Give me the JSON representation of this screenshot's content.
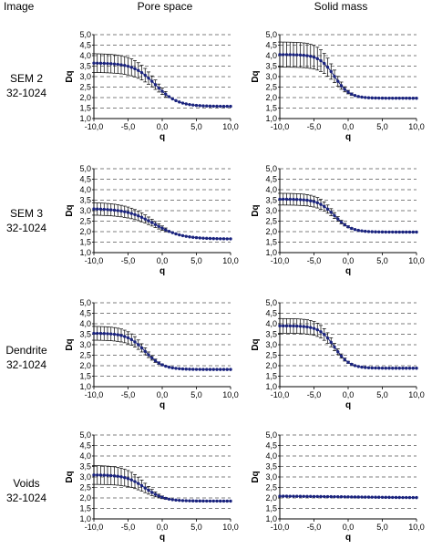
{
  "headers": {
    "image": "Image",
    "pore": "Pore space",
    "solid": "Solid mass"
  },
  "rows": [
    {
      "line1": "SEM 2",
      "line2": "32-1024"
    },
    {
      "line1": "SEM 3",
      "line2": "32-1024"
    },
    {
      "line1": "Dendrite",
      "line2": "32-1024"
    },
    {
      "line1": "Voids",
      "line2": "32-1024"
    }
  ],
  "colors": {
    "series": "#1a237e",
    "grid": "#555555",
    "error_bar": "#000000"
  },
  "chart_data": [
    {
      "id": "sem2-pore",
      "type": "scatter",
      "xlabel": "q",
      "ylabel": "Dq",
      "xlim": [
        -10,
        10
      ],
      "ylim": [
        1,
        5
      ],
      "grid": "horizontal-dashed",
      "xticks": [
        "-10,0",
        "-5,0",
        "0,0",
        "5,0",
        "10,0"
      ],
      "yticks": [
        "1,0",
        "1,5",
        "2,0",
        "2,5",
        "3,0",
        "3,5",
        "4,0",
        "4,5",
        "5,0"
      ],
      "curve": {
        "dmax": 3.65,
        "dmin": 1.58,
        "center": -1.0,
        "width": 1.6,
        "err_max": 0.45
      }
    },
    {
      "id": "sem2-solid",
      "type": "scatter",
      "xlabel": "q",
      "ylabel": "Dq",
      "xlim": [
        -10,
        10
      ],
      "ylim": [
        1,
        5
      ],
      "grid": "horizontal-dashed",
      "xticks": [
        "-10,0",
        "-5,0",
        "0,0",
        "5,0",
        "10,0"
      ],
      "yticks": [
        "1,0",
        "1,5",
        "2,0",
        "2,5",
        "3,0",
        "3,5",
        "4,0",
        "4,5",
        "5,0"
      ],
      "curve": {
        "dmax": 4.05,
        "dmin": 1.97,
        "center": -2.0,
        "width": 1.1,
        "err_max": 0.6
      }
    },
    {
      "id": "sem3-pore",
      "type": "scatter",
      "xlabel": "q",
      "ylabel": "Dq",
      "xlim": [
        -10,
        10
      ],
      "ylim": [
        1,
        5
      ],
      "grid": "horizontal-dashed",
      "xticks": [
        "-10,0",
        "-5,0",
        "0,0",
        "5,0",
        "10,0"
      ],
      "yticks": [
        "1,0",
        "1,5",
        "2,0",
        "2,5",
        "3,0",
        "3,5",
        "4,0",
        "4,5",
        "5,0"
      ],
      "curve": {
        "dmax": 3.1,
        "dmin": 1.65,
        "center": -1.2,
        "width": 2.0,
        "err_max": 0.3
      }
    },
    {
      "id": "sem3-solid",
      "type": "scatter",
      "xlabel": "q",
      "ylabel": "Dq",
      "xlim": [
        -10,
        10
      ],
      "ylim": [
        1,
        5
      ],
      "grid": "horizontal-dashed",
      "xticks": [
        "-10,0",
        "-5,0",
        "0,0",
        "5,0",
        "10,0"
      ],
      "yticks": [
        "1,0",
        "1,5",
        "2,0",
        "2,5",
        "3,0",
        "3,5",
        "4,0",
        "4,5",
        "5,0"
      ],
      "curve": {
        "dmax": 3.55,
        "dmin": 1.98,
        "center": -2.0,
        "width": 1.2,
        "err_max": 0.28
      }
    },
    {
      "id": "dendrite-pore",
      "type": "scatter",
      "xlabel": "q",
      "ylabel": "Dq",
      "xlim": [
        -10,
        10
      ],
      "ylim": [
        1,
        5
      ],
      "grid": "horizontal-dashed",
      "xticks": [
        "-10,0",
        "-5,0",
        "0,0",
        "5,0",
        "10,0"
      ],
      "yticks": [
        "1,0",
        "1,5",
        "2,0",
        "2,5",
        "3,0",
        "3,5",
        "4,0",
        "4,5",
        "5,0"
      ],
      "curve": {
        "dmax": 3.55,
        "dmin": 1.82,
        "center": -2.5,
        "width": 1.3,
        "err_max": 0.33
      }
    },
    {
      "id": "dendrite-solid",
      "type": "scatter",
      "xlabel": "q",
      "ylabel": "Dq",
      "xlim": [
        -10,
        10
      ],
      "ylim": [
        1,
        5
      ],
      "grid": "horizontal-dashed",
      "xticks": [
        "-10,0",
        "-5,0",
        "0,0",
        "5,0",
        "10,0"
      ],
      "yticks": [
        "1,0",
        "1,5",
        "2,0",
        "2,5",
        "3,0",
        "3,5",
        "4,0",
        "4,5",
        "5,0"
      ],
      "curve": {
        "dmax": 3.9,
        "dmin": 1.88,
        "center": -2.0,
        "width": 1.1,
        "err_max": 0.35
      }
    },
    {
      "id": "voids-pore",
      "type": "scatter",
      "xlabel": "q",
      "ylabel": "Dq",
      "xlim": [
        -10,
        10
      ],
      "ylim": [
        1,
        5
      ],
      "grid": "horizontal-dashed",
      "xticks": [
        "-10,0",
        "-5,0",
        "0,0",
        "5,0",
        "10,0"
      ],
      "yticks": [
        "1,0",
        "1,5",
        "2,0",
        "2,5",
        "3,0",
        "3,5",
        "4,0",
        "4,5",
        "5,0"
      ],
      "curve": {
        "dmax": 3.1,
        "dmin": 1.85,
        "center": -2.5,
        "width": 1.4,
        "err_max": 0.45
      }
    },
    {
      "id": "voids-solid",
      "type": "scatter",
      "xlabel": "q",
      "ylabel": "Dq",
      "xlim": [
        -10,
        10
      ],
      "ylim": [
        1,
        5
      ],
      "grid": "horizontal-dashed",
      "xticks": [
        "-10,0",
        "-5,0",
        "0,0",
        "5,0",
        "10,0"
      ],
      "yticks": [
        "1,0",
        "1,5",
        "2,0",
        "2,5",
        "3,0",
        "3,5",
        "4,0",
        "4,5",
        "5,0"
      ],
      "curve": {
        "dmax": 2.1,
        "dmin": 2.0,
        "center": 0.0,
        "width": 6.0,
        "err_max": 0.02
      }
    }
  ]
}
